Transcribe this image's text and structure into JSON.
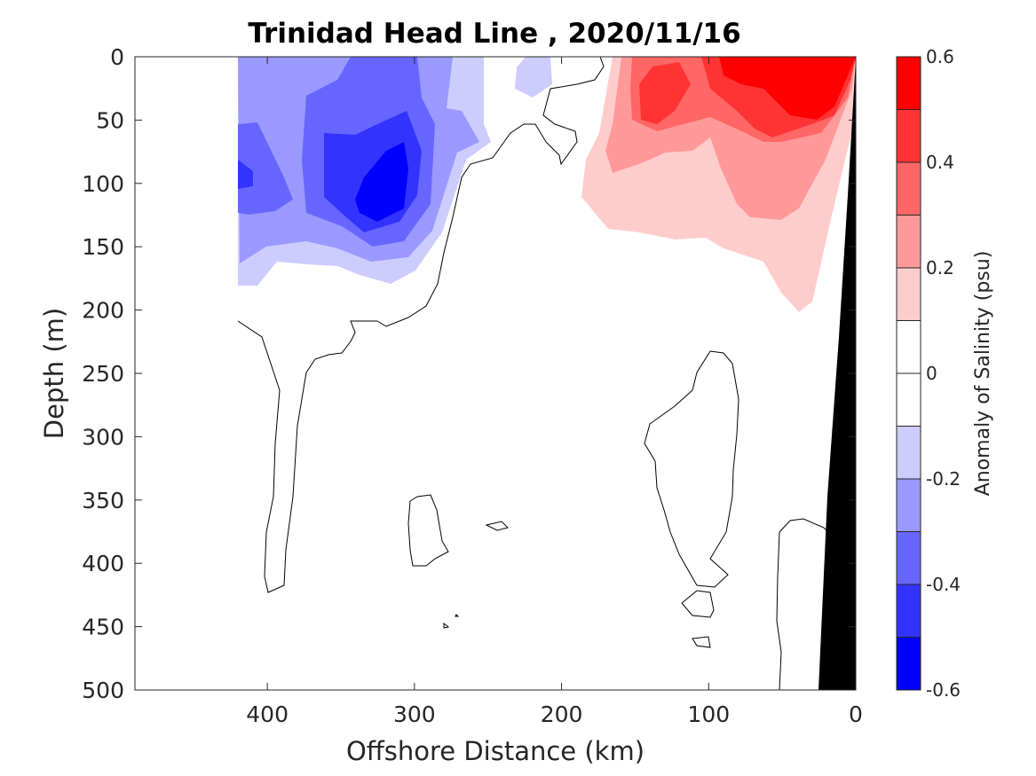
{
  "chart_data": {
    "type": "heatmap",
    "subtype": "filled-contour-section",
    "title": "Trinidad Head Line , 2020/11/16",
    "xlabel": "Offshore Distance (km)",
    "ylabel": "Depth (m)",
    "xlim": [
      490,
      0
    ],
    "x_reversed": true,
    "ylim": [
      0,
      500
    ],
    "y_reversed": true,
    "x_ticks": [
      400,
      300,
      200,
      100,
      0
    ],
    "y_ticks": [
      0,
      50,
      100,
      150,
      200,
      250,
      300,
      350,
      400,
      450,
      500
    ],
    "colorbar": {
      "label": "Anomaly of Salinity (psu)",
      "range": [
        -0.6,
        0.6
      ],
      "levels": [
        -0.6,
        -0.5,
        -0.4,
        -0.3,
        -0.2,
        -0.1,
        0,
        0.1,
        0.2,
        0.3,
        0.4,
        0.5,
        0.6
      ],
      "tick_values": [
        -0.6,
        -0.4,
        -0.2,
        0,
        0.2,
        0.4,
        0.6
      ],
      "tick_labels": [
        "-0.6",
        "-0.4",
        "-0.2",
        "0",
        "0.2",
        "0.4",
        "0.6"
      ],
      "colors": [
        "#0000ff",
        "#3333ff",
        "#6666ff",
        "#9999ff",
        "#ccccff",
        "#ffffff",
        "#ffffff",
        "#ffcccc",
        "#ff9999",
        "#ff6666",
        "#ff3333",
        "#ff0000"
      ]
    },
    "features": [
      {
        "name": "negative anomaly core",
        "x_km": 320,
        "depth_m": 100,
        "min_value": -0.5
      },
      {
        "name": "positive anomaly core",
        "x_km": 40,
        "depth_m": 30,
        "max_value": 0.55
      },
      {
        "name": "bathymetry",
        "color": "#000000"
      }
    ],
    "grid": false
  }
}
